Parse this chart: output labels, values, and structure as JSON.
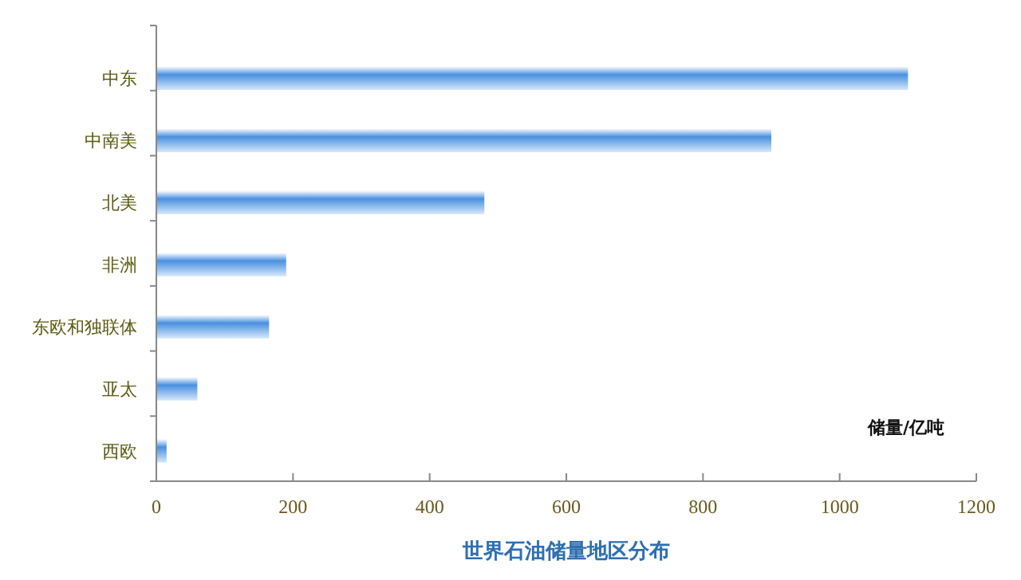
{
  "chart_data": {
    "type": "bar",
    "orientation": "horizontal",
    "title": "世界石油储量地区分布",
    "xlabel": "储量/亿吨",
    "categories": [
      "中东",
      "中南美",
      "北美",
      "非洲",
      "东欧和独联体",
      "亚太",
      "西欧"
    ],
    "values": [
      1100,
      900,
      480,
      190,
      165,
      60,
      15
    ],
    "color": "#4a90e0",
    "xlim": [
      0,
      1200
    ],
    "xticks": [
      0,
      200,
      400,
      600,
      800,
      1000,
      1200
    ],
    "grid": false
  }
}
